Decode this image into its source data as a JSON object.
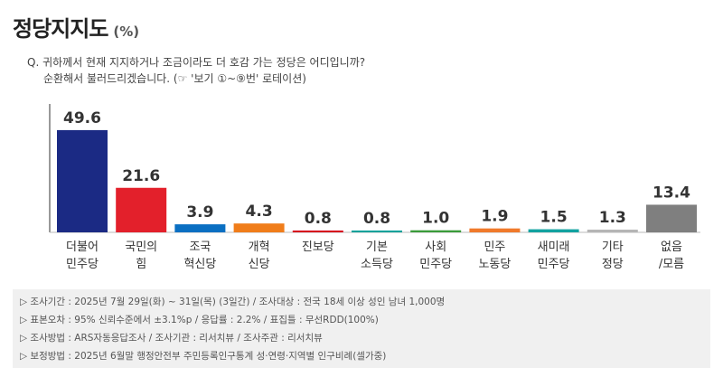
{
  "header": {
    "title": "정당지지도",
    "unit": "(%)"
  },
  "question": {
    "line1": "Q. 귀하께서 현재 지지하거나 조금이라도 더 호감 가는 정당은 어디입니까?",
    "line2": "순환해서 불러드리겠습니다. (☞ '보기 ①~⑨번' 로테이션)"
  },
  "chart_data": {
    "type": "bar",
    "categories": [
      [
        "더불어",
        "민주당"
      ],
      [
        "국민의",
        "힘"
      ],
      [
        "조국",
        "혁신당"
      ],
      [
        "개혁",
        "신당"
      ],
      [
        "진보당"
      ],
      [
        "기본",
        "소득당"
      ],
      [
        "사회",
        "민주당"
      ],
      [
        "민주",
        "노동당"
      ],
      [
        "새미래",
        "민주당"
      ],
      [
        "기타",
        "정당"
      ],
      [
        "없음",
        "/모름"
      ]
    ],
    "values": [
      49.6,
      21.6,
      3.9,
      4.3,
      0.8,
      0.8,
      1.0,
      1.9,
      1.5,
      1.3,
      13.4
    ],
    "value_labels": [
      "49.6",
      "21.6",
      "3.9",
      "4.3",
      "0.8",
      "0.8",
      "1.0",
      "1.9",
      "1.5",
      "1.3",
      "13.4"
    ],
    "colors": [
      "#1b2a84",
      "#e3202b",
      "#0a6fc2",
      "#f07d1a",
      "#d6001c",
      "#00a19a",
      "#3a9b3a",
      "#f07a2b",
      "#12a2a0",
      "#b5b5b5",
      "#7f7f7f"
    ],
    "ylim": [
      0,
      50
    ],
    "title": "",
    "xlabel": "",
    "ylabel": ""
  },
  "footer": {
    "lines": [
      "▷ 조사기간 : 2025년 7월 29일(화) ~ 31일(목) (3일간) / 조사대상 : 전국 18세 이상 성인 남녀 1,000명",
      "▷ 표본오차 : 95% 신뢰수준에서 ±3.1%p / 응답률 : 2.2% / 표집틀 : 무선RDD(100%)",
      "▷ 조사방법 : ARS자동응답조사 / 조사기관 : 리서치뷰 / 조사주관 : 리서치뷰",
      "▷ 보정방법 : 2025년 6월말 행정안전부 주민등록인구통계 성·연령·지역별 인구비례(셀가중)"
    ]
  }
}
